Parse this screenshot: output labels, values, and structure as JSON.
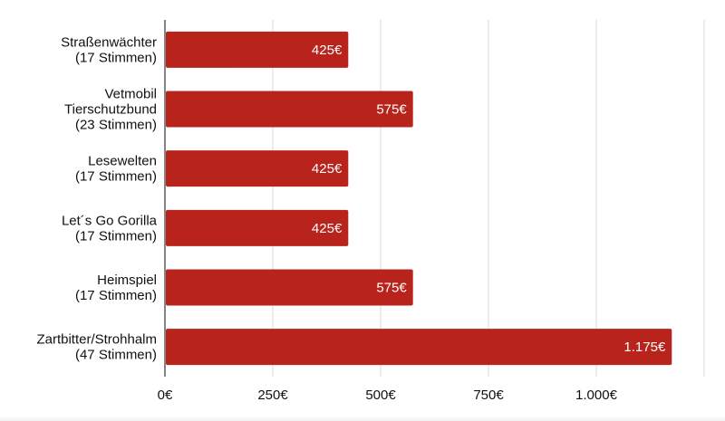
{
  "chart_data": {
    "type": "bar",
    "orientation": "horizontal",
    "categories": [
      [
        "Straßenwächter",
        "(17 Stimmen)"
      ],
      [
        "Vetmobil",
        "Tierschutzbund",
        "(23 Stimmen)"
      ],
      [
        "Lesewelten",
        "(17 Stimmen)"
      ],
      [
        "Let´s Go Gorilla",
        "(17 Stimmen)"
      ],
      [
        "Heimspiel",
        "(17 Stimmen)"
      ],
      [
        "Zartbitter/Strohhalm",
        "(47 Stimmen)"
      ]
    ],
    "values": [
      425,
      575,
      425,
      425,
      575,
      1175
    ],
    "data_labels": [
      "425€",
      "575€",
      "425€",
      "425€",
      "575€",
      "1.175€"
    ],
    "x_ticks": [
      0,
      250,
      500,
      750,
      1000,
      1250
    ],
    "x_tick_labels": [
      "0€",
      "250€",
      "500€",
      "750€",
      "1.000€",
      ""
    ],
    "xlim": [
      0,
      1250
    ],
    "grid": "vertical",
    "bar_color": "#b8241c",
    "title": "",
    "xlabel": "",
    "ylabel": ""
  }
}
